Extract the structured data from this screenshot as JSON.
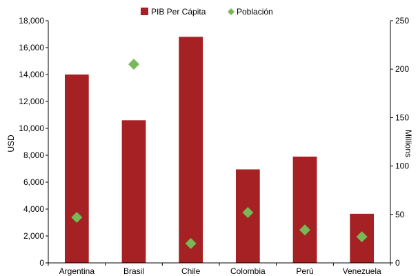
{
  "chart_data": {
    "type": "bar",
    "categories": [
      "Argentina",
      "Brasil",
      "Chile",
      "Colombia",
      "Perú",
      "Venezuela"
    ],
    "series": [
      {
        "name": "PIB Per Cápita",
        "type": "bar",
        "axis": "left",
        "color": "#A52123",
        "values": [
          14000,
          10600,
          16800,
          6950,
          7900,
          3650
        ]
      },
      {
        "name": "Población",
        "type": "scatter",
        "marker": "diamond",
        "axis": "right",
        "color": "#77B857",
        "values": [
          47,
          205,
          20,
          52,
          34,
          27
        ]
      }
    ],
    "left_axis": {
      "label": "USD",
      "ylim": [
        0,
        18000
      ],
      "ticks": [
        0,
        2000,
        4000,
        6000,
        8000,
        10000,
        12000,
        14000,
        16000,
        18000
      ],
      "tick_labels": [
        "0",
        "2,000",
        "4,000",
        "6,000",
        "8,000",
        "10,000",
        "12,000",
        "14,000",
        "16,000",
        "18,000"
      ]
    },
    "right_axis": {
      "label": "Millions",
      "ylim": [
        0,
        250
      ],
      "ticks": [
        0,
        50,
        100,
        150,
        200,
        250
      ],
      "tick_labels": [
        "0",
        "50",
        "100",
        "150",
        "200",
        "250"
      ]
    },
    "legend_position": "top",
    "grid": false
  }
}
